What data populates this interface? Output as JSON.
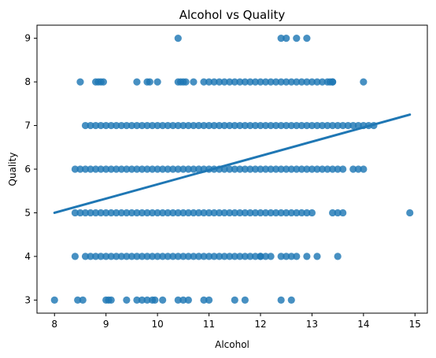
{
  "chart_data": {
    "type": "scatter",
    "title": "Alcohol vs Quality",
    "xlabel": "Alcohol",
    "ylabel": "Quality",
    "xlim": [
      7.66,
      15.24
    ],
    "ylim": [
      2.7,
      9.3
    ],
    "xticks": [
      8,
      9,
      10,
      11,
      12,
      13,
      14,
      15
    ],
    "yticks": [
      3,
      4,
      5,
      6,
      7,
      8,
      9
    ],
    "grid": false,
    "legend": "none",
    "point_color": "#1f77b4",
    "regression_line": {
      "x": [
        8.0,
        14.9
      ],
      "y": [
        5.0,
        7.25
      ]
    },
    "rows": [
      {
        "y": 3,
        "dense": [],
        "sparse": [
          8.0,
          8.45,
          8.55,
          9.0,
          9.05,
          9.1,
          9.4,
          9.6,
          9.7,
          9.8,
          9.9,
          9.95,
          10.1,
          10.4,
          10.5,
          10.6,
          10.9,
          11.0,
          11.5,
          11.7,
          12.4,
          12.6
        ]
      },
      {
        "y": 4,
        "dense": [
          8.6,
          12.0
        ],
        "sparse": [
          8.4,
          12.0,
          12.1,
          12.2,
          12.4,
          12.5,
          12.6,
          12.7,
          12.9,
          13.1,
          13.5
        ]
      },
      {
        "y": 5,
        "dense": [
          8.4,
          13.0
        ],
        "sparse": [
          13.4,
          13.5,
          13.6,
          14.9
        ]
      },
      {
        "y": 6,
        "dense": [
          8.4,
          13.6
        ],
        "sparse": [
          13.8,
          13.9,
          14.0
        ]
      },
      {
        "y": 7,
        "dense": [
          8.6,
          13.9
        ],
        "sparse": [
          14.0,
          14.1,
          14.2
        ]
      },
      {
        "y": 8,
        "dense": [
          10.9,
          13.4
        ],
        "sparse": [
          8.5,
          8.8,
          8.85,
          8.9,
          8.95,
          9.6,
          9.8,
          9.85,
          10.0,
          10.4,
          10.45,
          10.5,
          10.55,
          10.7,
          13.35,
          13.4,
          14.0
        ]
      },
      {
        "y": 9,
        "dense": [],
        "sparse": [
          10.4,
          12.4,
          12.5,
          12.7,
          12.9
        ]
      }
    ]
  }
}
